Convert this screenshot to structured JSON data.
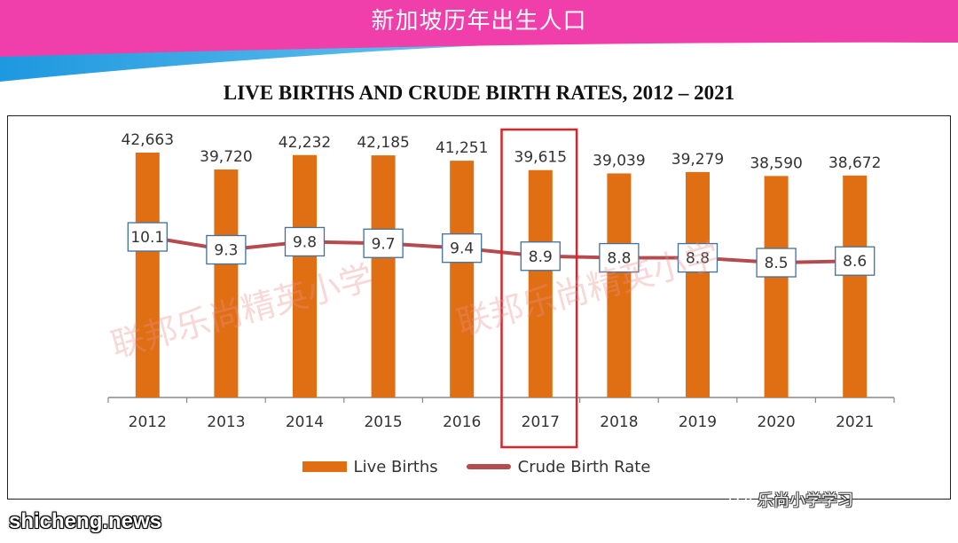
{
  "banner": {
    "title": "新加坡历年出生人口",
    "colors": {
      "primary": "#f03faa",
      "secondary": "#1e98df"
    }
  },
  "chart_data": {
    "type": "bar",
    "title": "LIVE BIRTHS AND CRUDE BIRTH RATES, 2012 – 2021",
    "categories": [
      "2012",
      "2013",
      "2014",
      "2015",
      "2016",
      "2017",
      "2018",
      "2019",
      "2020",
      "2021"
    ],
    "series": [
      {
        "name": "Live Births",
        "type": "bar",
        "color": "#e06f14",
        "values": [
          42663,
          39720,
          42232,
          42185,
          41251,
          39615,
          39039,
          39279,
          38590,
          38672
        ],
        "labels": [
          "42,663",
          "39,720",
          "42,232",
          "42,185",
          "41,251",
          "39,615",
          "39,039",
          "39,279",
          "38,590",
          "38,672"
        ]
      },
      {
        "name": "Crude Birth Rate",
        "type": "line",
        "color": "#b54a4f",
        "values": [
          10.1,
          9.3,
          9.8,
          9.7,
          9.4,
          8.9,
          8.8,
          8.8,
          8.5,
          8.6
        ],
        "labels": [
          "10.1",
          "9.3",
          "9.8",
          "9.7",
          "9.4",
          "8.9",
          "8.8",
          "8.8",
          "8.5",
          "8.6"
        ]
      }
    ],
    "ylim": [
      0,
      45000
    ],
    "highlight": {
      "category": "2017",
      "color": "#d9252a"
    },
    "legend": {
      "position": "bottom"
    },
    "grid": false
  },
  "watermarks": [
    "联邦乐尚精英小学",
    "联邦乐尚精英小学"
  ],
  "footer": {
    "source": "shicheng.news",
    "account": "乐尚小学学习",
    "account_icon": "wechat-icon"
  }
}
